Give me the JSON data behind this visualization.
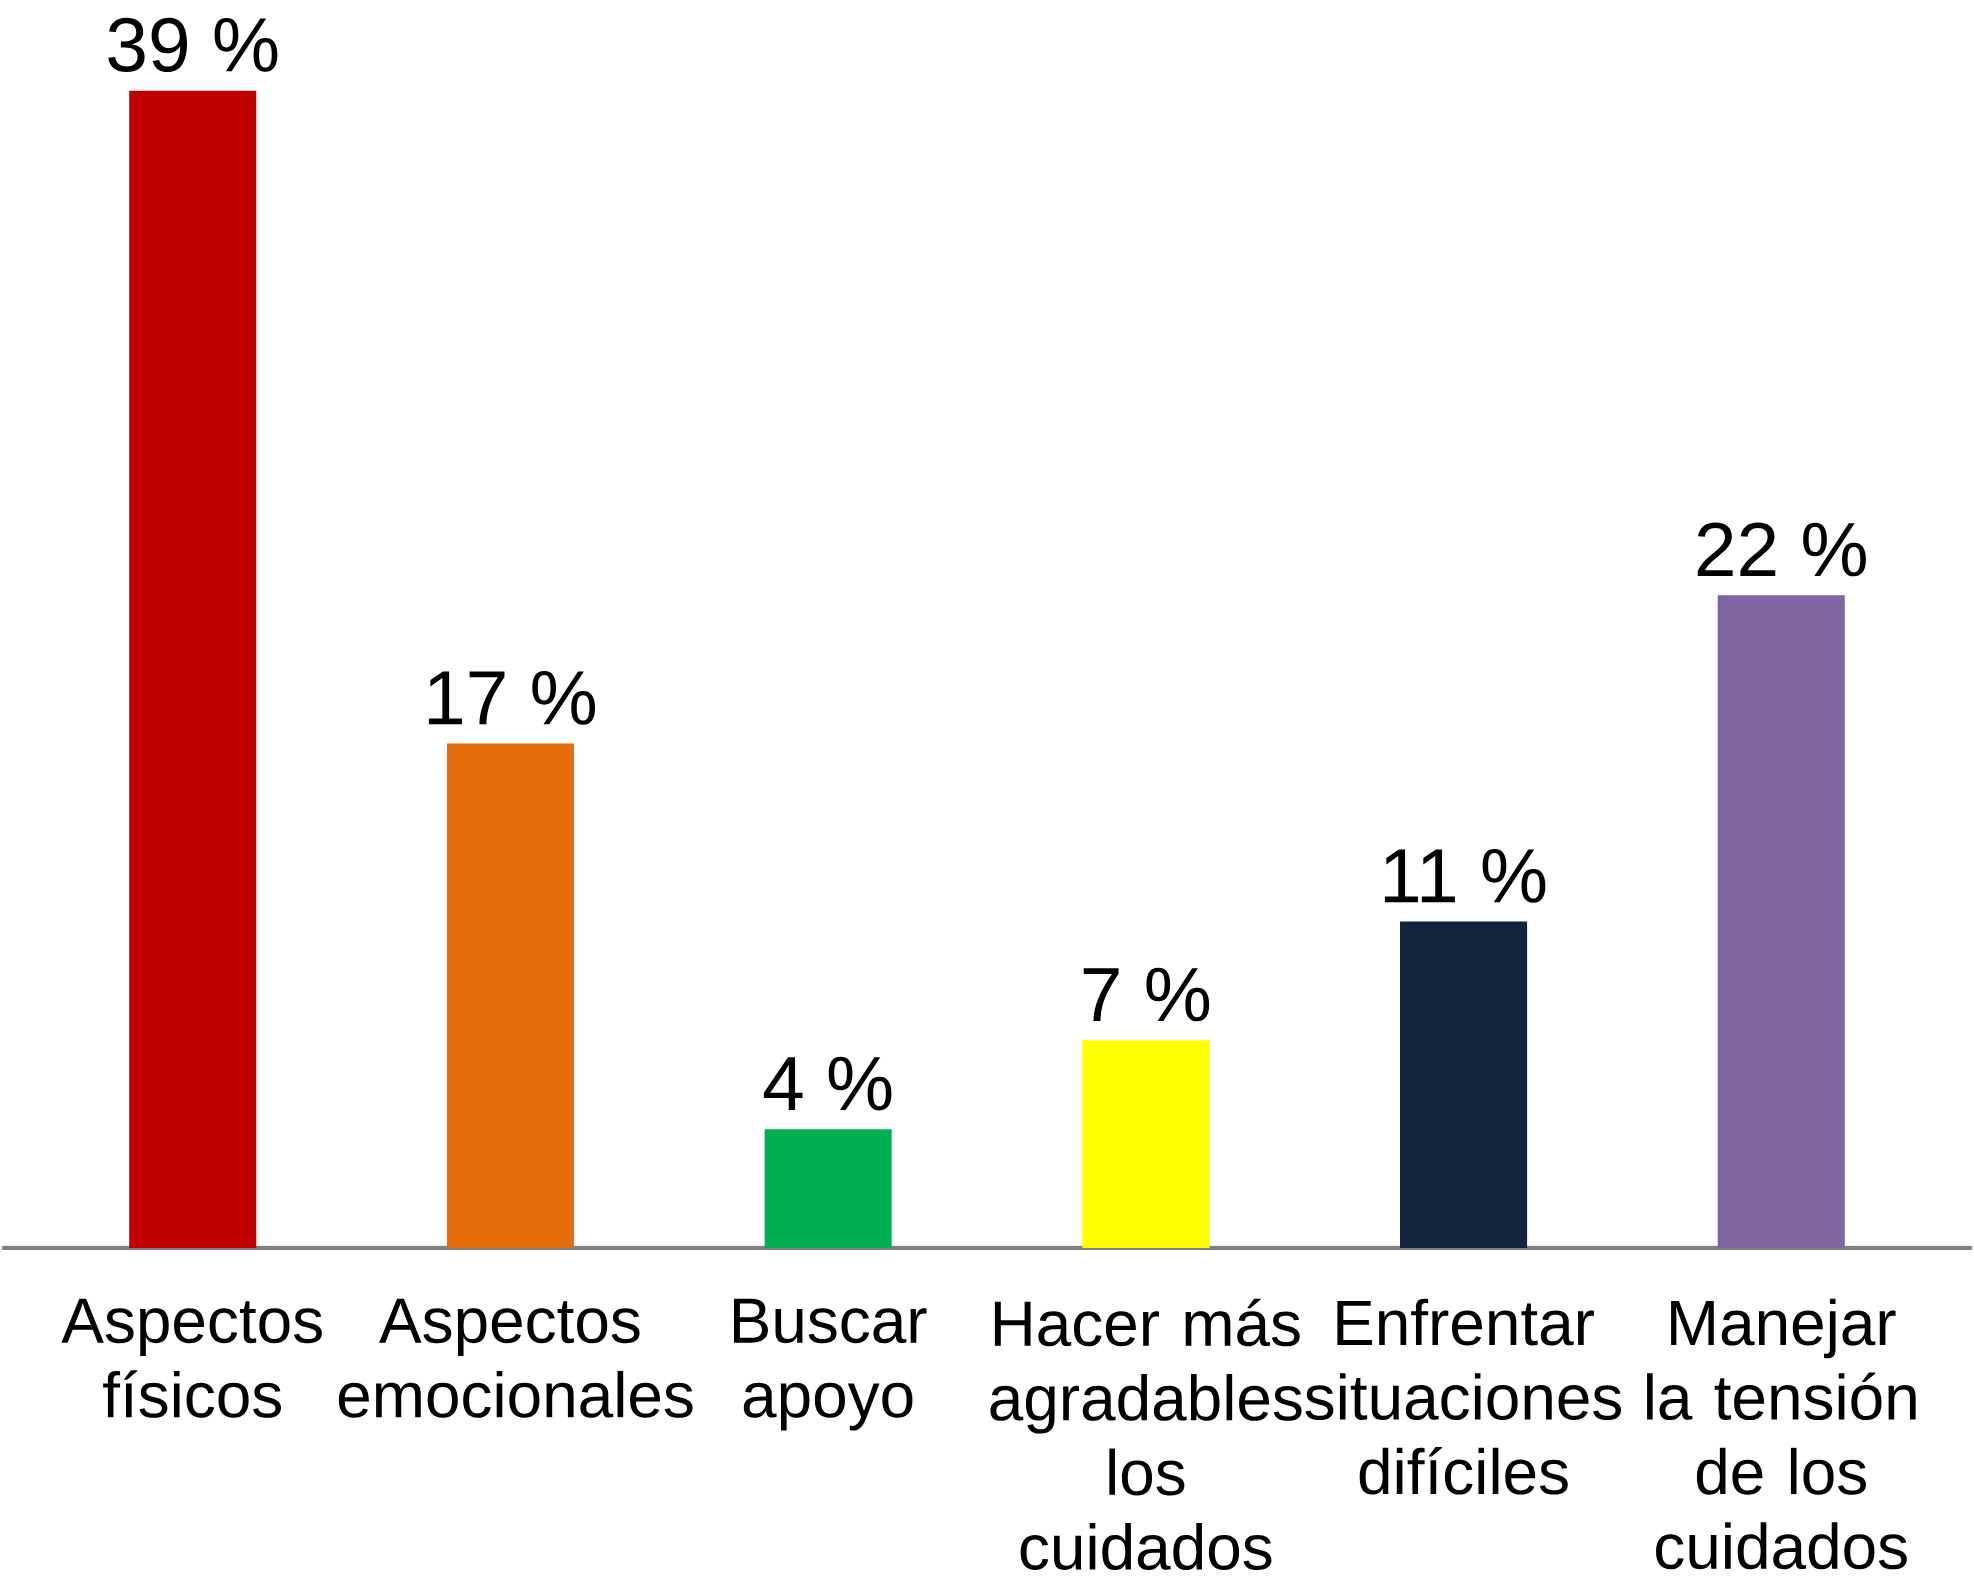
{
  "chart_data": {
    "type": "bar",
    "categories": [
      "Aspectos físicos",
      "Aspectos emocionales",
      "Buscar apoyo",
      "Hacer más agradables los cuidados",
      "Enfrentar situaciones difíciles",
      "Manejar la tensión de los cuidados"
    ],
    "values": [
      39,
      17,
      4,
      7,
      11,
      22
    ],
    "value_labels": [
      "39 %",
      "17 %",
      "4 %",
      "7 %",
      "11 %",
      "22 %"
    ],
    "colors": [
      "#c00000",
      "#e46c0a",
      "#00b050",
      "#ffff00",
      "#10243e",
      "#8064a2"
    ]
  }
}
